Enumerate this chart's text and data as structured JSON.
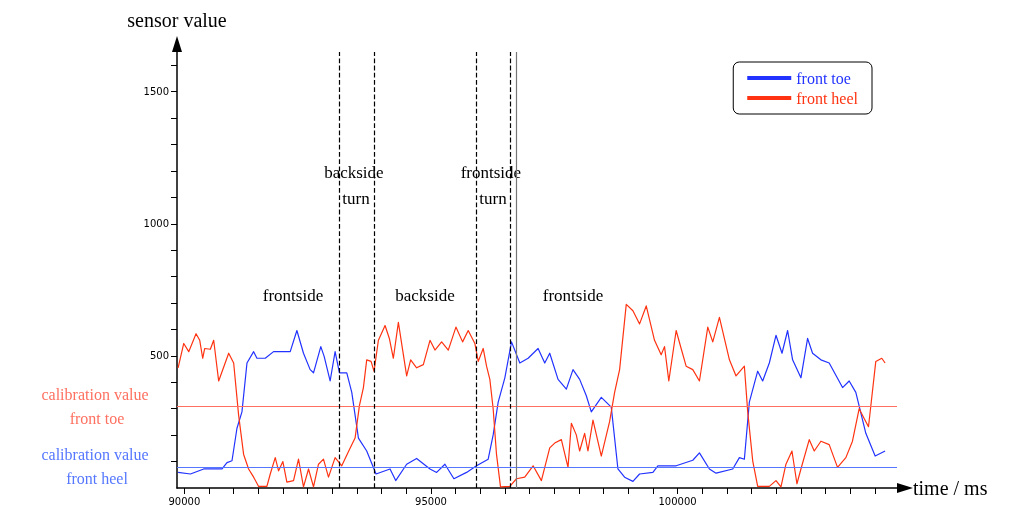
{
  "chart_data": {
    "type": "line",
    "xlabel": "time / ms",
    "ylabel": "sensor value",
    "xlim": [
      89850,
      104450
    ],
    "ylim": [
      0,
      1650
    ],
    "xticks": [
      90000,
      {
        "value": 90500,
        "label": null
      },
      {
        "value": 91000,
        "label": null
      },
      {
        "value": 91500,
        "label": null
      },
      {
        "value": 92000,
        "label": null
      },
      {
        "value": 92500,
        "label": null
      },
      {
        "value": 93000,
        "label": null
      },
      {
        "value": 93500,
        "label": null
      },
      {
        "value": 94000,
        "label": null
      },
      {
        "value": 94500,
        "label": null
      },
      95000,
      {
        "value": 95500,
        "label": null
      },
      {
        "value": 96000,
        "label": null
      },
      {
        "value": 96500,
        "label": null
      },
      {
        "value": 97000,
        "label": null
      },
      {
        "value": 97500,
        "label": null
      },
      {
        "value": 98000,
        "label": null
      },
      {
        "value": 98500,
        "label": null
      },
      {
        "value": 99000,
        "label": null
      },
      {
        "value": 99500,
        "label": null
      },
      100000,
      {
        "value": 100500,
        "label": null
      },
      {
        "value": 101000,
        "label": null
      },
      {
        "value": 101500,
        "label": null
      },
      {
        "value": 102000,
        "label": null
      },
      {
        "value": 102500,
        "label": null
      },
      {
        "value": 103000,
        "label": null
      },
      {
        "value": 103500,
        "label": null
      },
      {
        "value": 104000,
        "label": null
      }
    ],
    "yticks": [
      {
        "value": 100,
        "label": null
      },
      {
        "value": 200,
        "label": null
      },
      {
        "value": 300,
        "label": null
      },
      {
        "value": 400,
        "label": null
      },
      500,
      {
        "value": 600,
        "label": null
      },
      {
        "value": 700,
        "label": null
      },
      {
        "value": 800,
        "label": null
      },
      {
        "value": 900,
        "label": null
      },
      1000,
      {
        "value": 1100,
        "label": null
      },
      {
        "value": 1200,
        "label": null
      },
      {
        "value": 1300,
        "label": null
      },
      {
        "value": 1400,
        "label": null
      },
      1500,
      {
        "value": 1600,
        "label": null
      }
    ],
    "grid": false,
    "legend": "top right",
    "marker": "none",
    "line_style": "solid",
    "series": [
      {
        "name": "front toe",
        "color": "#2233ff",
        "x": [
          89872,
          90122,
          90392,
          90763,
          90864,
          90965,
          91066,
          91167,
          91269,
          91404,
          91471,
          91640,
          91808,
          91977,
          92146,
          92281,
          92415,
          92550,
          92618,
          92766,
          92834,
          92955,
          93056,
          93144,
          93293,
          93394,
          93529,
          93697,
          93886,
          94170,
          94285,
          94507,
          94709,
          94980,
          95115,
          95283,
          95465,
          95722,
          95924,
          96160,
          96261,
          96363,
          96498,
          96633,
          96802,
          96970,
          97172,
          97307,
          97408,
          97577,
          97745,
          97880,
          98015,
          98150,
          98251,
          98454,
          98656,
          98791,
          98926,
          99095,
          99230,
          99500,
          99601,
          99972,
          100309,
          100444,
          100646,
          100781,
          101119,
          101254,
          101355,
          101456,
          101625,
          101726,
          101861,
          101996,
          102118,
          102232,
          102333,
          102502,
          102637,
          102738,
          102907,
          103075,
          103346,
          103480,
          103615,
          103818,
          104007,
          104209
        ],
        "values": [
          59,
          53,
          72,
          72,
          96,
          103,
          226,
          288,
          473,
          516,
          491,
          491,
          516,
          516,
          516,
          596,
          510,
          448,
          436,
          535,
          498,
          405,
          516,
          436,
          436,
          362,
          189,
          140,
          53,
          72,
          28,
          90,
          112,
          72,
          59,
          90,
          35,
          59,
          84,
          109,
          201,
          325,
          417,
          553,
          473,
          491,
          528,
          473,
          510,
          411,
          374,
          448,
          411,
          349,
          288,
          343,
          306,
          72,
          41,
          25,
          53,
          59,
          84,
          84,
          105,
          133,
          72,
          56,
          72,
          115,
          109,
          325,
          442,
          405,
          473,
          578,
          510,
          596,
          485,
          417,
          566,
          510,
          485,
          473,
          380,
          405,
          362,
          207,
          121,
          140
        ]
      },
      {
        "name": "front heel",
        "color": "#ff3311",
        "x": [
          89872,
          89987,
          90088,
          90236,
          90311,
          90371,
          90412,
          90526,
          90594,
          90695,
          90898,
          90999,
          91100,
          91201,
          91302,
          91404,
          91505,
          91673,
          91741,
          91842,
          91910,
          91997,
          92078,
          92213,
          92314,
          92415,
          92517,
          92618,
          92719,
          92820,
          92922,
          93056,
          93191,
          93347,
          93461,
          93549,
          93630,
          93697,
          93785,
          93846,
          93934,
          94069,
          94156,
          94237,
          94339,
          94426,
          94507,
          94588,
          94709,
          94845,
          94980,
          95081,
          95216,
          95351,
          95506,
          95641,
          95755,
          95890,
          95958,
          96059,
          96127,
          96194,
          96261,
          96329,
          96410,
          96599,
          96734,
          96901,
          97071,
          97239,
          97408,
          97509,
          97644,
          97779,
          97847,
          97947,
          98015,
          98116,
          98183,
          98285,
          98454,
          98622,
          98724,
          98825,
          98960,
          99095,
          99230,
          99365,
          99533,
          99668,
          99736,
          99823,
          99972,
          100073,
          100174,
          100309,
          100444,
          100613,
          100714,
          100849,
          101052,
          101186,
          101355,
          101423,
          101524,
          101625,
          101861,
          101996,
          102097,
          102198,
          102320,
          102421,
          102502,
          102671,
          102772,
          102907,
          103075,
          103244,
          103413,
          103547,
          103683,
          103784,
          103872,
          104020,
          104141,
          104209
        ],
        "values": [
          455,
          547,
          516,
          584,
          559,
          491,
          528,
          525,
          559,
          405,
          510,
          473,
          275,
          127,
          72,
          41,
          6,
          6,
          53,
          115,
          65,
          100,
          22,
          28,
          109,
          4,
          72,
          4,
          90,
          109,
          41,
          115,
          84,
          146,
          189,
          312,
          380,
          485,
          479,
          442,
          559,
          615,
          566,
          491,
          627,
          522,
          424,
          485,
          455,
          467,
          559,
          522,
          553,
          522,
          609,
          553,
          596,
          547,
          479,
          528,
          461,
          411,
          300,
          127,
          4,
          6,
          35,
          41,
          84,
          28,
          152,
          170,
          183,
          78,
          245,
          201,
          140,
          207,
          140,
          257,
          121,
          251,
          362,
          448,
          695,
          671,
          621,
          689,
          559,
          504,
          535,
          405,
          596,
          528,
          461,
          448,
          405,
          609,
          553,
          646,
          485,
          424,
          461,
          288,
          103,
          6,
          6,
          28,
          4,
          90,
          140,
          16,
          72,
          183,
          140,
          177,
          164,
          78,
          115,
          177,
          300,
          263,
          232,
          479,
          491,
          473
        ]
      }
    ],
    "ref_lines": [
      {
        "axis": "y",
        "value": 310,
        "label": "calibration value front toe",
        "color": "#ff7060",
        "line_style": "solid"
      },
      {
        "axis": "y",
        "value": 80,
        "label": "calibration value front heel",
        "color": "#5577ff",
        "line_style": "solid"
      },
      {
        "axis": "x",
        "value": 93130,
        "label": null,
        "color": "#000000",
        "line_style": "dashed"
      },
      {
        "axis": "x",
        "value": 93840,
        "label": null,
        "color": "#000000",
        "line_style": "dashed"
      },
      {
        "axis": "x",
        "value": 95920,
        "label": null,
        "color": "#000000",
        "line_style": "dashed"
      },
      {
        "axis": "x",
        "value": 96600,
        "label": null,
        "color": "#000000",
        "line_style": "dashed"
      },
      {
        "axis": "x",
        "value": 96720,
        "label": null,
        "color": "#777777",
        "line_style": "solid"
      }
    ],
    "annotations": [
      "frontside",
      "backside",
      "frontside",
      "backside turn",
      "frontside turn"
    ]
  }
}
